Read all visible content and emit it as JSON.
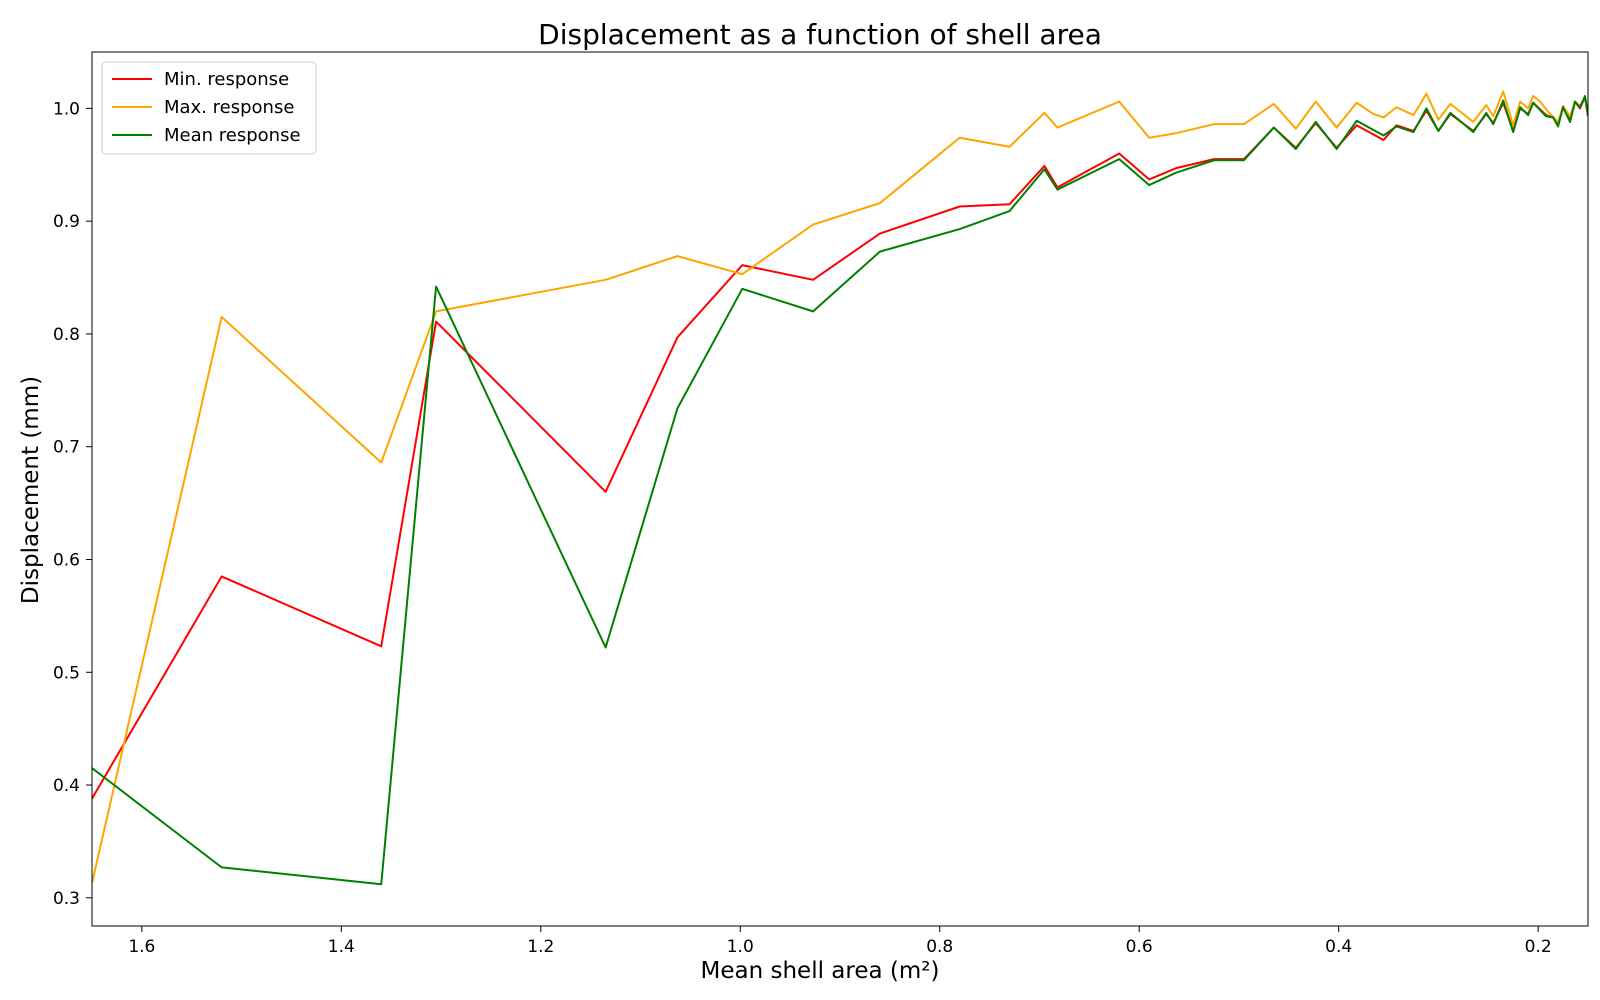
{
  "chart_data": {
    "type": "line",
    "title": "Displacement as a function of shell area",
    "xlabel": "Mean shell area (m²)",
    "ylabel": "Displacement (mm)",
    "xlim": [
      1.65,
      0.15
    ],
    "ylim": [
      0.275,
      1.05
    ],
    "x_inverted": true,
    "xticks": [
      1.6,
      1.4,
      1.2,
      1.0,
      0.8,
      0.6,
      0.4,
      0.2
    ],
    "xtick_labels": [
      "1.6",
      "1.4",
      "1.2",
      "1.0",
      "0.8",
      "0.6",
      "0.4",
      "0.2"
    ],
    "yticks": [
      0.3,
      0.4,
      0.5,
      0.6,
      0.7,
      0.8,
      0.9,
      1.0
    ],
    "ytick_labels": [
      "0.3",
      "0.4",
      "0.5",
      "0.6",
      "0.7",
      "0.8",
      "0.9",
      "1.0"
    ],
    "grid": false,
    "legend_position": "top-left",
    "series": [
      {
        "name": "Min. response",
        "color": "#ff0000",
        "points": [
          [
            1.65,
            0.388
          ],
          [
            1.52,
            0.585
          ],
          [
            1.36,
            0.523
          ],
          [
            1.305,
            0.811
          ],
          [
            1.135,
            0.66
          ],
          [
            1.063,
            0.797
          ],
          [
            0.998,
            0.861
          ],
          [
            0.927,
            0.848
          ],
          [
            0.86,
            0.889
          ],
          [
            0.78,
            0.913
          ],
          [
            0.73,
            0.915
          ],
          [
            0.695,
            0.949
          ],
          [
            0.682,
            0.93
          ],
          [
            0.62,
            0.96
          ],
          [
            0.59,
            0.937
          ],
          [
            0.563,
            0.947
          ],
          [
            0.525,
            0.955
          ],
          [
            0.495,
            0.955
          ],
          [
            0.465,
            0.983
          ],
          [
            0.443,
            0.965
          ],
          [
            0.423,
            0.987
          ],
          [
            0.402,
            0.965
          ],
          [
            0.382,
            0.985
          ],
          [
            0.355,
            0.972
          ],
          [
            0.342,
            0.985
          ],
          [
            0.325,
            0.98
          ],
          [
            0.312,
            0.998
          ],
          [
            0.3,
            0.98
          ],
          [
            0.288,
            0.995
          ],
          [
            0.265,
            0.98
          ],
          [
            0.252,
            0.995
          ],
          [
            0.245,
            0.987
          ],
          [
            0.235,
            1.005
          ],
          [
            0.225,
            0.98
          ],
          [
            0.218,
            1.0
          ],
          [
            0.21,
            0.995
          ],
          [
            0.205,
            1.005
          ],
          [
            0.192,
            0.994
          ],
          [
            0.185,
            0.992
          ],
          [
            0.18,
            0.986
          ],
          [
            0.175,
            1.002
          ],
          [
            0.168,
            0.99
          ],
          [
            0.163,
            1.006
          ],
          [
            0.158,
            1.0
          ],
          [
            0.153,
            1.01
          ],
          [
            0.15,
            0.993
          ]
        ]
      },
      {
        "name": "Max. response",
        "color": "#ffa500",
        "points": [
          [
            1.65,
            0.313
          ],
          [
            1.52,
            0.815
          ],
          [
            1.36,
            0.686
          ],
          [
            1.305,
            0.82
          ],
          [
            1.135,
            0.848
          ],
          [
            1.063,
            0.869
          ],
          [
            0.998,
            0.853
          ],
          [
            0.927,
            0.897
          ],
          [
            0.86,
            0.916
          ],
          [
            0.78,
            0.974
          ],
          [
            0.73,
            0.966
          ],
          [
            0.695,
            0.996
          ],
          [
            0.682,
            0.983
          ],
          [
            0.62,
            1.006
          ],
          [
            0.59,
            0.974
          ],
          [
            0.563,
            0.978
          ],
          [
            0.525,
            0.986
          ],
          [
            0.495,
            0.986
          ],
          [
            0.465,
            1.004
          ],
          [
            0.443,
            0.982
          ],
          [
            0.423,
            1.006
          ],
          [
            0.402,
            0.983
          ],
          [
            0.382,
            1.005
          ],
          [
            0.365,
            0.995
          ],
          [
            0.355,
            0.992
          ],
          [
            0.342,
            1.001
          ],
          [
            0.325,
            0.994
          ],
          [
            0.312,
            1.013
          ],
          [
            0.3,
            0.99
          ],
          [
            0.288,
            1.004
          ],
          [
            0.265,
            0.988
          ],
          [
            0.252,
            1.003
          ],
          [
            0.245,
            0.993
          ],
          [
            0.235,
            1.015
          ],
          [
            0.225,
            0.985
          ],
          [
            0.218,
            1.006
          ],
          [
            0.21,
            1.0
          ],
          [
            0.205,
            1.011
          ],
          [
            0.198,
            1.006
          ],
          [
            0.19,
            0.997
          ],
          [
            0.18,
            0.988
          ],
          [
            0.175,
            1.002
          ],
          [
            0.168,
            0.993
          ],
          [
            0.163,
            1.006
          ],
          [
            0.158,
            1.002
          ],
          [
            0.153,
            1.01
          ],
          [
            0.15,
            0.995
          ]
        ]
      },
      {
        "name": "Mean response",
        "color": "#008000",
        "points": [
          [
            1.65,
            0.415
          ],
          [
            1.52,
            0.327
          ],
          [
            1.36,
            0.312
          ],
          [
            1.305,
            0.842
          ],
          [
            1.135,
            0.522
          ],
          [
            1.063,
            0.734
          ],
          [
            0.998,
            0.84
          ],
          [
            0.927,
            0.82
          ],
          [
            0.86,
            0.873
          ],
          [
            0.78,
            0.893
          ],
          [
            0.73,
            0.909
          ],
          [
            0.695,
            0.946
          ],
          [
            0.682,
            0.928
          ],
          [
            0.62,
            0.955
          ],
          [
            0.59,
            0.932
          ],
          [
            0.563,
            0.943
          ],
          [
            0.525,
            0.954
          ],
          [
            0.495,
            0.954
          ],
          [
            0.465,
            0.983
          ],
          [
            0.443,
            0.964
          ],
          [
            0.423,
            0.988
          ],
          [
            0.402,
            0.964
          ],
          [
            0.382,
            0.989
          ],
          [
            0.355,
            0.976
          ],
          [
            0.342,
            0.984
          ],
          [
            0.325,
            0.979
          ],
          [
            0.312,
            1.0
          ],
          [
            0.3,
            0.98
          ],
          [
            0.288,
            0.996
          ],
          [
            0.265,
            0.979
          ],
          [
            0.252,
            0.996
          ],
          [
            0.245,
            0.986
          ],
          [
            0.235,
            1.007
          ],
          [
            0.225,
            0.979
          ],
          [
            0.218,
            1.001
          ],
          [
            0.21,
            0.994
          ],
          [
            0.205,
            1.005
          ],
          [
            0.192,
            0.993
          ],
          [
            0.185,
            0.992
          ],
          [
            0.18,
            0.984
          ],
          [
            0.175,
            1.001
          ],
          [
            0.168,
            0.988
          ],
          [
            0.163,
            1.006
          ],
          [
            0.158,
            1.001
          ],
          [
            0.153,
            1.011
          ],
          [
            0.15,
            0.993
          ]
        ]
      }
    ]
  }
}
